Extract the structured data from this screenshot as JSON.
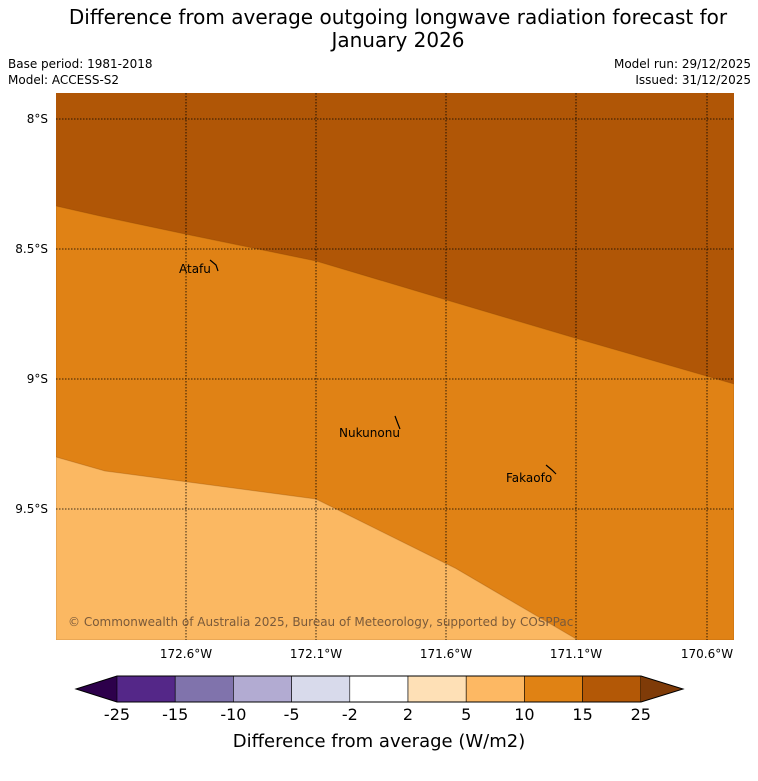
{
  "title_line1": "Difference from average outgoing longwave radiation forecast for",
  "title_line2": "January 2026",
  "meta": {
    "base_period": "Base period: 1981-2018",
    "model": "Model: ACCESS-S2",
    "model_run": "Model run: 29/12/2025",
    "issued": "Issued: 31/12/2025"
  },
  "map": {
    "lat_labels": [
      "8°S",
      "8.5°S",
      "9°S",
      "9.5°S"
    ],
    "lon_labels": [
      "172.6°W",
      "172.1°W",
      "171.6°W",
      "171.1°W",
      "170.6°W"
    ],
    "places": [
      "Atafu",
      "Nukunonu",
      "Fakaofo"
    ],
    "copyright": "© Commonwealth of Australia 2025, Bureau of Meteorology, supported by COSPPac",
    "colors": {
      "15_to_25": "#b05606",
      "10_to_15": "#e08215",
      "5_to_10": "#fbb862"
    }
  },
  "colorbar": {
    "ticks": [
      "-25",
      "-15",
      "-10",
      "-5",
      "-2",
      "2",
      "5",
      "10",
      "15",
      "25"
    ],
    "colors": [
      "#542788",
      "#8073ac",
      "#b2abd2",
      "#d8daeb",
      "#ffffff",
      "#fee0b6",
      "#fdb863",
      "#e08214",
      "#b35806"
    ],
    "under_color": "#2d004b",
    "over_color": "#7f3b08",
    "label": "Difference from average (W/m2)"
  }
}
